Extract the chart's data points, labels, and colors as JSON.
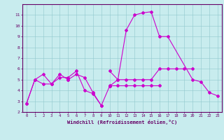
{
  "title": "",
  "xlabel": "Windchill (Refroidissement éolien,°C)",
  "ylabel": "",
  "bg_color": "#c8ecee",
  "line_color": "#cc00cc",
  "xlim": [
    -0.5,
    23.5
  ],
  "ylim": [
    2,
    12
  ],
  "yticks": [
    2,
    3,
    4,
    5,
    6,
    7,
    8,
    9,
    10,
    11
  ],
  "xticks": [
    0,
    1,
    2,
    3,
    4,
    5,
    6,
    7,
    8,
    9,
    10,
    11,
    12,
    13,
    14,
    15,
    16,
    17,
    18,
    19,
    20,
    21,
    22,
    23
  ],
  "series": [
    [
      [
        0,
        2.8
      ],
      [
        1,
        5.0
      ],
      [
        2,
        5.5
      ],
      [
        3,
        4.6
      ],
      [
        4,
        5.5
      ],
      [
        5,
        5.0
      ]
    ],
    [
      [
        5,
        5.0
      ],
      [
        6,
        5.5
      ],
      [
        7,
        5.2
      ],
      [
        8,
        3.8
      ],
      [
        9,
        2.6
      ]
    ],
    [
      [
        0,
        2.8
      ],
      [
        1,
        5.0
      ],
      [
        2,
        4.6
      ],
      [
        3,
        4.6
      ],
      [
        4,
        5.2
      ],
      [
        5,
        5.2
      ],
      [
        6,
        5.8
      ],
      [
        7,
        4.0
      ],
      [
        8,
        3.7
      ],
      [
        9,
        2.6
      ],
      [
        10,
        4.4
      ]
    ],
    [
      [
        10,
        4.4
      ],
      [
        11,
        5.0
      ],
      [
        12,
        9.6
      ],
      [
        13,
        11.0
      ],
      [
        14,
        11.2
      ],
      [
        15,
        11.3
      ],
      [
        16,
        9.0
      ],
      [
        17,
        9.0
      ],
      [
        20,
        5.0
      ],
      [
        21,
        4.8
      ],
      [
        22,
        3.8
      ],
      [
        23,
        3.5
      ]
    ],
    [
      [
        10,
        5.8
      ],
      [
        11,
        5.0
      ],
      [
        12,
        5.0
      ],
      [
        13,
        5.0
      ],
      [
        14,
        5.0
      ],
      [
        15,
        5.0
      ],
      [
        16,
        6.0
      ],
      [
        17,
        6.0
      ],
      [
        18,
        6.0
      ],
      [
        19,
        6.0
      ],
      [
        20,
        6.0
      ]
    ],
    [
      [
        10,
        4.5
      ],
      [
        11,
        4.5
      ],
      [
        12,
        4.5
      ],
      [
        13,
        4.5
      ],
      [
        14,
        4.5
      ],
      [
        15,
        4.5
      ],
      [
        16,
        4.5
      ]
    ]
  ]
}
